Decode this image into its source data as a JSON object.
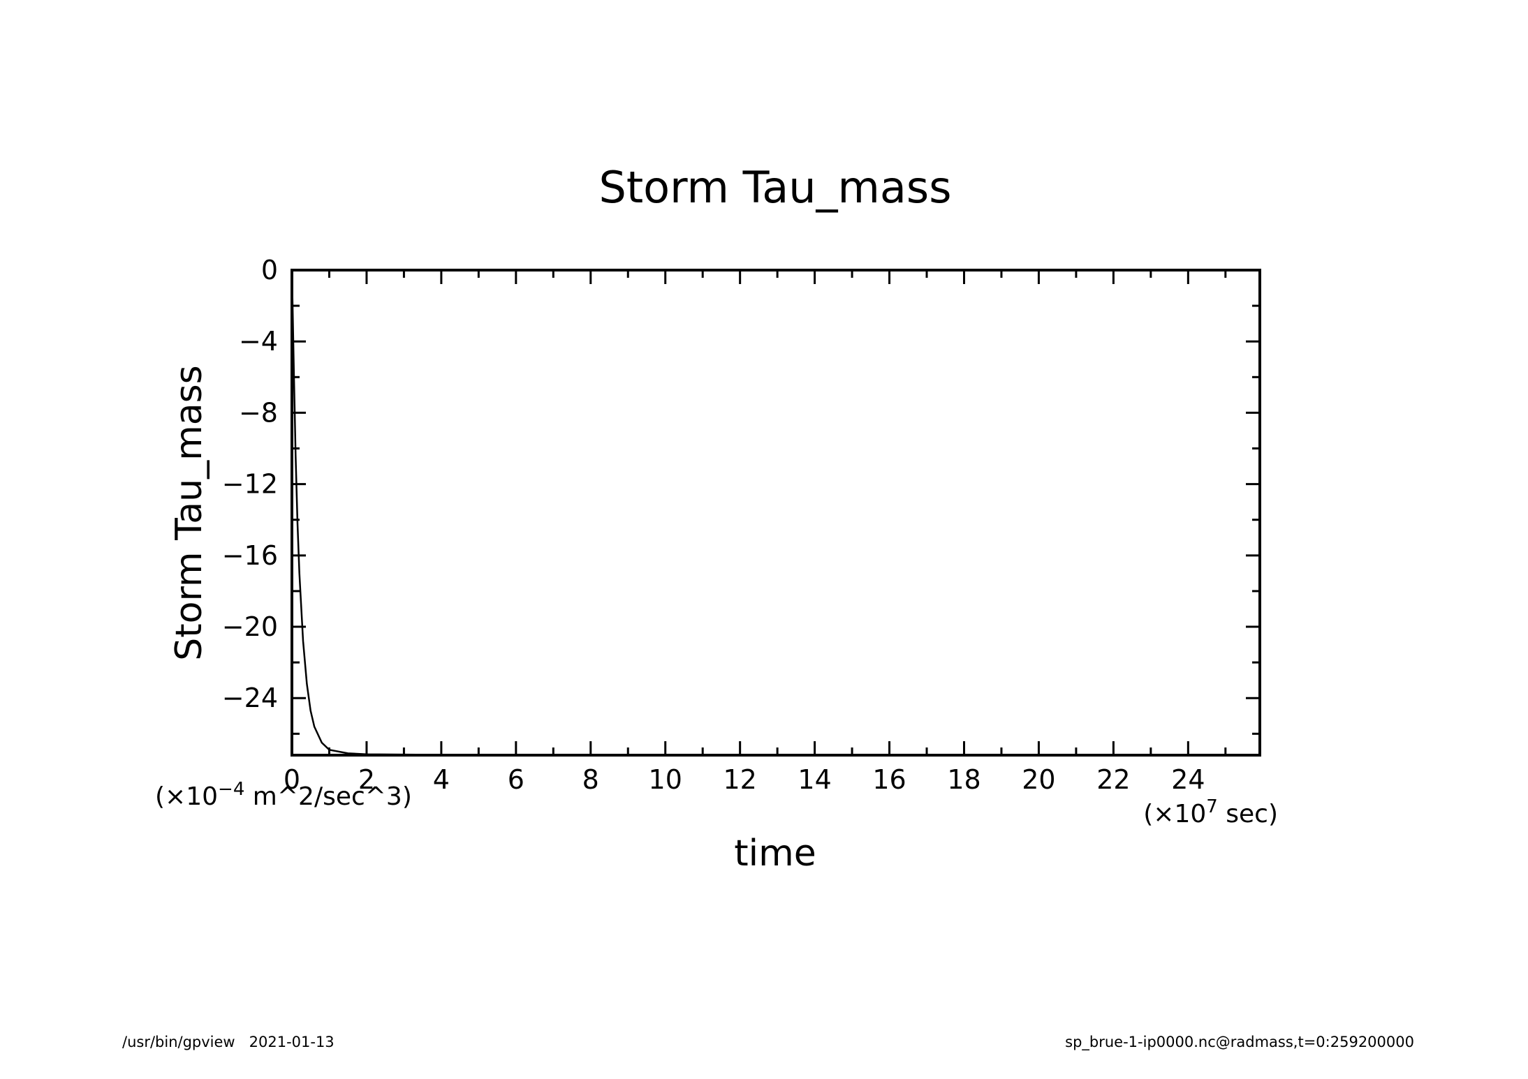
{
  "chart_data": {
    "type": "line",
    "title": "Storm Tau_mass",
    "xlabel": "time",
    "ylabel": "Storm Tau_mass",
    "x_unit": "(×10⁷ sec)",
    "y_unit": "(×10⁻⁴ m^2/sec^3)",
    "x_unit_parts": {
      "pre": "(×10",
      "exp": "7",
      "post": " sec)"
    },
    "y_unit_parts": {
      "pre": "(×10",
      "exp": "−4",
      "post": " m^2/sec^3)"
    },
    "xlim": [
      0,
      25.92
    ],
    "ylim": [
      -27.2,
      0
    ],
    "x_ticks": [
      0,
      2,
      4,
      6,
      8,
      10,
      12,
      14,
      16,
      18,
      20,
      22,
      24
    ],
    "x_tick_labels": [
      "0",
      "2",
      "4",
      "6",
      "8",
      "10",
      "12",
      "14",
      "16",
      "18",
      "20",
      "22",
      "24"
    ],
    "y_ticks": [
      0,
      -4,
      -8,
      -12,
      -16,
      -20,
      -24
    ],
    "y_tick_labels": [
      "0",
      "−4",
      "−8",
      "−12",
      "−16",
      "−20",
      "−24"
    ],
    "grid": false,
    "series": [
      {
        "x": [
          0,
          0.05,
          0.1,
          0.15,
          0.2,
          0.3,
          0.4,
          0.5,
          0.6,
          0.8,
          1.0,
          1.5,
          2,
          4,
          8,
          12,
          16,
          20,
          24,
          25.92
        ],
        "values": [
          0,
          -5.5,
          -10.4,
          -14.2,
          -17.0,
          -20.8,
          -23.2,
          -24.7,
          -25.6,
          -26.5,
          -26.9,
          -27.1,
          -27.15,
          -27.18,
          -27.18,
          -27.18,
          -27.18,
          -27.18,
          -27.18,
          -27.18
        ]
      }
    ]
  },
  "footer": {
    "left": "/usr/bin/gpview   2021-01-13",
    "right": "sp_brue-1-ip0000.nc@radmass,t=0:259200000"
  }
}
